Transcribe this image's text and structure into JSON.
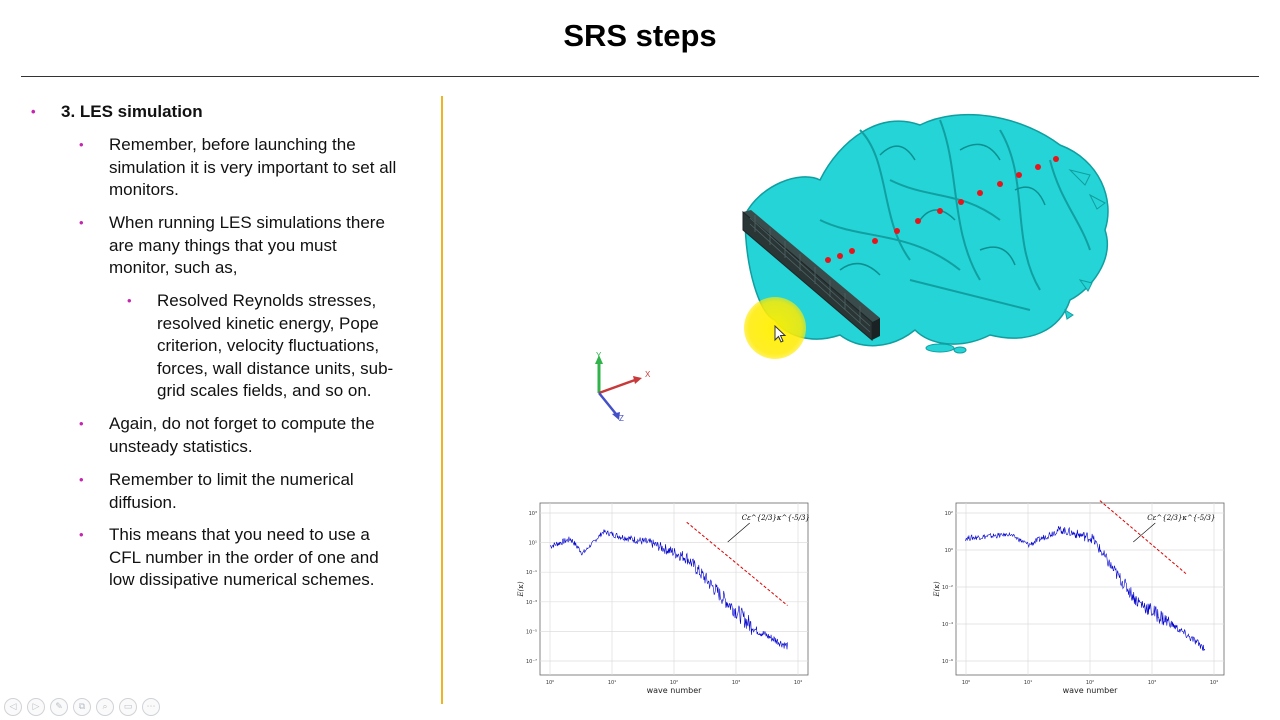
{
  "slide": {
    "title": "SRS steps"
  },
  "bullets": {
    "level1": "3. LES simulation",
    "b1": [
      "Remember, before launching the",
      "simulation it is very important to set all",
      "monitors."
    ],
    "b2": [
      "When running LES simulations there",
      "are many things that you must",
      "monitor, such as,"
    ],
    "b2_sub": [
      "Resolved Reynolds stresses,",
      "resolved kinetic energy, Pope",
      "criterion, velocity fluctuations,",
      "forces, wall distance units, sub-",
      "grid scales fields, and so on."
    ],
    "b3": [
      "Again, do not forget to compute the",
      "unsteady statistics."
    ],
    "b4": [
      "Remember to limit the numerical",
      "diffusion."
    ],
    "b5": [
      "This means that you need to use a",
      "CFL number in the order of one and",
      "low dissipative numerical schemes."
    ]
  },
  "axes_triad": {
    "x": "X",
    "y": "Y",
    "z": "Z"
  },
  "colors": {
    "accent_line": "#f0b323",
    "bullet": "#c724b1",
    "isosurface": "#22d3d6",
    "probe": "#e8141b",
    "spectrum": "#0000cc",
    "slope": "#dd0000"
  },
  "chart_data": [
    {
      "type": "line",
      "xlabel": "wave number",
      "ylabel": "E(κ)",
      "annotation": "Cε^{2/3}κ^{-5/3}",
      "x_tick_labels": [
        "10⁰",
        "10¹",
        "10²",
        "10³",
        "10⁴"
      ],
      "y_tick_labels": [
        "10³",
        "10¹",
        "10⁻¹",
        "10⁻³",
        "10⁻⁵",
        "10⁻⁷"
      ],
      "log_x": true,
      "log_y": true,
      "grid": true,
      "series": [
        {
          "values": [
            [
              1,
              30
            ],
            [
              2,
              60
            ],
            [
              3,
              15
            ],
            [
              6,
              120
            ],
            [
              10,
              80
            ],
            [
              30,
              40
            ],
            [
              100,
              10
            ],
            [
              300,
              0.3
            ],
            [
              1000,
              0.01
            ],
            [
              3000,
              0.002
            ]
          ]
        },
        {
          "values": [
            [
              100,
              300
            ],
            [
              3000,
              0.1
            ]
          ]
        }
      ]
    },
    {
      "type": "line",
      "xlabel": "wave number",
      "ylabel": "E(κ)",
      "annotation": "Cε^{2/3}κ^{-5/3}",
      "x_tick_labels": [
        "10⁰",
        "10¹",
        "10²",
        "10³",
        "10⁴"
      ],
      "y_tick_labels": [
        "10²",
        "10⁰",
        "10⁻²",
        "10⁻⁴",
        "10⁻⁶"
      ],
      "log_x": true,
      "log_y": true,
      "grid": true,
      "series": [
        {
          "values": [
            [
              1,
              2
            ],
            [
              5,
              3
            ],
            [
              10,
              1
            ],
            [
              30,
              5
            ],
            [
              100,
              2
            ],
            [
              200,
              0.1
            ],
            [
              500,
              0.003
            ],
            [
              2000,
              0.0002
            ],
            [
              6000,
              2e-05
            ]
          ]
        },
        {
          "values": [
            [
              100,
              200
            ],
            [
              3000,
              0.05
            ]
          ]
        }
      ]
    }
  ],
  "player_controls": [
    "◁",
    "▷",
    "✎",
    "⧉",
    "⌕",
    "▭",
    "⋯"
  ]
}
